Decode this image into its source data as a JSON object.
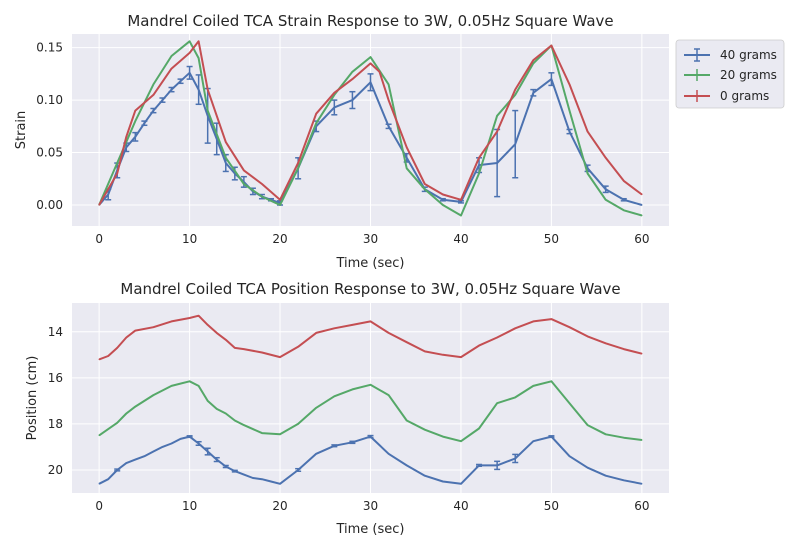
{
  "chart_data": [
    {
      "type": "line",
      "title": "Mandrel Coiled TCA Strain Response to 3W, 0.05Hz Square Wave",
      "xlabel": "Time (sec)",
      "ylabel": "Strain",
      "xlim": [
        -3,
        63
      ],
      "ylim": [
        -0.02,
        0.163
      ],
      "xticks": [
        0,
        10,
        20,
        30,
        40,
        50,
        60
      ],
      "yticks": [
        0.0,
        0.05,
        0.1,
        0.15
      ],
      "ytick_labels": [
        "0.00",
        "0.05",
        "0.10",
        "0.15"
      ],
      "y_inverted": false,
      "grid": true,
      "legend": "outside-right",
      "series": [
        {
          "name": "40 grams",
          "color": "#4c72b0",
          "x": [
            0,
            1,
            2,
            3,
            4,
            5,
            6,
            7,
            8,
            9,
            10,
            11,
            12,
            13,
            14,
            15,
            16,
            17,
            18,
            19,
            20,
            22,
            24,
            26,
            28,
            30,
            32,
            34,
            36,
            38,
            40,
            42,
            44,
            46,
            48,
            50,
            52,
            54,
            56,
            58,
            60
          ],
          "y": [
            0,
            0.01,
            0.033,
            0.055,
            0.065,
            0.078,
            0.09,
            0.1,
            0.11,
            0.118,
            0.126,
            0.11,
            0.085,
            0.063,
            0.04,
            0.03,
            0.022,
            0.013,
            0.008,
            0.005,
            0.002,
            0.035,
            0.075,
            0.093,
            0.1,
            0.117,
            0.075,
            0.045,
            0.015,
            0.005,
            0.003,
            0.038,
            0.04,
            0.058,
            0.107,
            0.12,
            0.07,
            0.035,
            0.015,
            0.005,
            0
          ],
          "yerr": [
            0,
            0.005,
            0.007,
            0.004,
            0.004,
            0.002,
            0.002,
            0.002,
            0.002,
            0.002,
            0.006,
            0.014,
            0.026,
            0.015,
            0.008,
            0.006,
            0.005,
            0.003,
            0.002,
            0.001,
            0.002,
            0.01,
            0.005,
            0.007,
            0.008,
            0.008,
            0.002,
            0.004,
            0.002,
            0.001,
            0.001,
            0.007,
            0.032,
            0.032,
            0.003,
            0.006,
            0.002,
            0.003,
            0.003,
            0.001,
            0
          ]
        },
        {
          "name": "20 grams",
          "color": "#55a868",
          "x": [
            0,
            2,
            4,
            6,
            8,
            10,
            11,
            12,
            14,
            16,
            18,
            20,
            22,
            24,
            26,
            28,
            30,
            32,
            34,
            36,
            38,
            40,
            42,
            44,
            46,
            48,
            50,
            52,
            54,
            56,
            58,
            60
          ],
          "y": [
            0,
            0.04,
            0.08,
            0.115,
            0.142,
            0.156,
            0.14,
            0.09,
            0.045,
            0.02,
            0.008,
            0,
            0.035,
            0.078,
            0.105,
            0.127,
            0.141,
            0.115,
            0.035,
            0.015,
            0,
            -0.01,
            0.03,
            0.085,
            0.105,
            0.135,
            0.152,
            0.09,
            0.03,
            0.005,
            -0.005,
            -0.01
          ]
        },
        {
          "name": "0 grams",
          "color": "#c44e52",
          "x": [
            0,
            2,
            3,
            4,
            6,
            8,
            10,
            11,
            12,
            14,
            16,
            18,
            20,
            22,
            24,
            26,
            28,
            30,
            31,
            32,
            34,
            36,
            38,
            40,
            42,
            44,
            46,
            48,
            50,
            52,
            54,
            56,
            58,
            60
          ],
          "y": [
            0,
            0.03,
            0.065,
            0.09,
            0.105,
            0.13,
            0.145,
            0.156,
            0.11,
            0.06,
            0.033,
            0.02,
            0.005,
            0.04,
            0.087,
            0.107,
            0.12,
            0.135,
            0.127,
            0.1,
            0.055,
            0.02,
            0.01,
            0.005,
            0.045,
            0.07,
            0.11,
            0.138,
            0.152,
            0.115,
            0.07,
            0.045,
            0.023,
            0.01
          ]
        }
      ]
    },
    {
      "type": "line",
      "title": "Mandrel Coiled TCA Position Response to 3W, 0.05Hz Square Wave",
      "xlabel": "Time (sec)",
      "ylabel": "Position (cm)",
      "xlim": [
        -3,
        63
      ],
      "ylim": [
        21.0,
        12.75
      ],
      "xticks": [
        0,
        10,
        20,
        30,
        40,
        50,
        60
      ],
      "yticks": [
        14,
        16,
        18,
        20
      ],
      "ytick_labels": [
        "14",
        "16",
        "18",
        "20"
      ],
      "y_inverted": true,
      "grid": true,
      "series": [
        {
          "name": "0 grams",
          "color": "#c44e52",
          "x": [
            0,
            1,
            2,
            3,
            4,
            6,
            8,
            10,
            11,
            12,
            13,
            14,
            15,
            16,
            18,
            20,
            22,
            24,
            26,
            28,
            30,
            32,
            34,
            36,
            38,
            40,
            42,
            44,
            46,
            48,
            50,
            52,
            54,
            56,
            58,
            60
          ],
          "y": [
            15.2,
            15.05,
            14.7,
            14.25,
            13.95,
            13.8,
            13.55,
            13.4,
            13.3,
            13.7,
            14.05,
            14.35,
            14.7,
            14.75,
            14.9,
            15.1,
            14.65,
            14.05,
            13.85,
            13.7,
            13.55,
            14.05,
            14.45,
            14.85,
            15.0,
            15.1,
            14.6,
            14.25,
            13.85,
            13.55,
            13.45,
            13.8,
            14.2,
            14.5,
            14.75,
            14.95
          ]
        },
        {
          "name": "20 grams",
          "color": "#55a868",
          "x": [
            0,
            2,
            3,
            4,
            6,
            8,
            10,
            11,
            12,
            13,
            14,
            15,
            16,
            18,
            20,
            22,
            24,
            26,
            28,
            30,
            32,
            34,
            36,
            38,
            40,
            42,
            44,
            46,
            48,
            50,
            52,
            54,
            56,
            58,
            60
          ],
          "y": [
            18.5,
            17.95,
            17.55,
            17.25,
            16.75,
            16.35,
            16.15,
            16.35,
            17.0,
            17.35,
            17.55,
            17.85,
            18.05,
            18.4,
            18.45,
            18.0,
            17.3,
            16.8,
            16.5,
            16.3,
            16.75,
            17.85,
            18.25,
            18.55,
            18.75,
            18.2,
            17.1,
            16.85,
            16.35,
            16.15,
            17.1,
            18.05,
            18.45,
            18.6,
            18.7
          ]
        },
        {
          "name": "40 grams",
          "color": "#4c72b0",
          "x": [
            0,
            1,
            2,
            3,
            4,
            5,
            6,
            7,
            8,
            9,
            10,
            11,
            12,
            13,
            14,
            15,
            16,
            17,
            18,
            19,
            20,
            22,
            24,
            26,
            28,
            30,
            32,
            34,
            36,
            38,
            40,
            42,
            44,
            46,
            48,
            50,
            52,
            54,
            56,
            58,
            60
          ],
          "y": [
            20.6,
            20.4,
            20.0,
            19.7,
            19.55,
            19.4,
            19.2,
            19.0,
            18.85,
            18.65,
            18.55,
            18.85,
            19.2,
            19.55,
            19.85,
            20.05,
            20.2,
            20.35,
            20.4,
            20.5,
            20.6,
            20.0,
            19.3,
            18.95,
            18.8,
            18.55,
            19.3,
            19.8,
            20.25,
            20.5,
            20.6,
            19.8,
            19.8,
            19.5,
            18.75,
            18.55,
            19.4,
            19.9,
            20.25,
            20.45,
            20.6
          ]
        }
      ]
    }
  ],
  "legend": {
    "entries": [
      {
        "name": "40 grams",
        "color": "#4c72b0"
      },
      {
        "name": "20 grams",
        "color": "#55a868"
      },
      {
        "name": "0 grams",
        "color": "#c44e52"
      }
    ]
  },
  "colors": {
    "axes_bg": "#eaeaf2",
    "grid": "#ffffff",
    "text": "#262626"
  }
}
